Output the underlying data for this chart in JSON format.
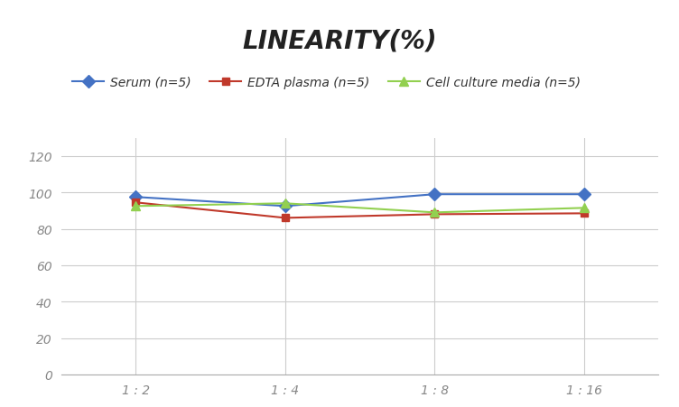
{
  "title": "LINEARITY(%)",
  "x_labels": [
    "1 : 2",
    "1 : 4",
    "1 : 8",
    "1 : 16"
  ],
  "x_positions": [
    0,
    1,
    2,
    3
  ],
  "series": [
    {
      "label": "Serum (n=5)",
      "values": [
        97.5,
        92.5,
        99.0,
        99.0
      ],
      "color": "#4472C4",
      "marker": "D",
      "markersize": 7,
      "linewidth": 1.5
    },
    {
      "label": "EDTA plasma (n=5)",
      "values": [
        94.5,
        86.0,
        88.0,
        88.5
      ],
      "color": "#C0392B",
      "marker": "s",
      "markersize": 6,
      "linewidth": 1.5
    },
    {
      "label": "Cell culture media (n=5)",
      "values": [
        92.5,
        94.0,
        89.0,
        91.5
      ],
      "color": "#92D050",
      "marker": "^",
      "markersize": 7,
      "linewidth": 1.5
    }
  ],
  "ylim": [
    0,
    130
  ],
  "yticks": [
    0,
    20,
    40,
    60,
    80,
    100,
    120
  ],
  "grid_color": "#CCCCCC",
  "background_color": "#FFFFFF",
  "title_fontsize": 20,
  "legend_fontsize": 10,
  "tick_fontsize": 10,
  "tick_color": "#888888"
}
